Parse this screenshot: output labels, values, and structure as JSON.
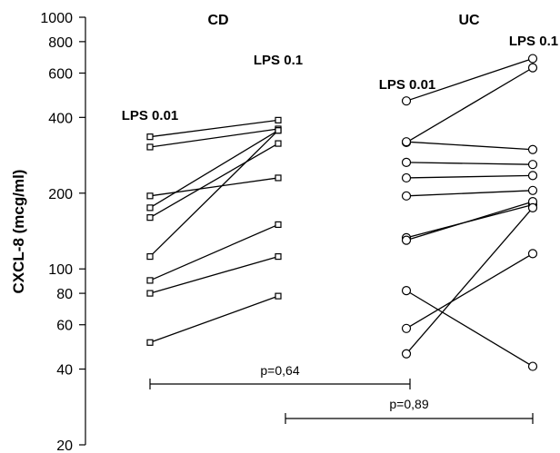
{
  "chart_data": {
    "type": "scatter",
    "yscale": "log",
    "ylabel": "CXCL-8 (mcg/ml)",
    "ylim": [
      20,
      1000
    ],
    "yticks": [
      1000,
      800,
      600,
      400,
      200,
      100,
      80,
      60,
      40,
      20
    ],
    "groups": [
      {
        "title": "CD",
        "marker": "square",
        "conditions": [
          "LPS 0.01",
          "LPS 0.1"
        ],
        "pairs": [
          [
            335,
            390
          ],
          [
            305,
            360
          ],
          [
            195,
            230
          ],
          [
            175,
            355
          ],
          [
            160,
            315
          ],
          [
            112,
            355
          ],
          [
            90,
            150
          ],
          [
            80,
            112
          ],
          [
            51,
            78
          ]
        ]
      },
      {
        "title": "UC",
        "marker": "circle",
        "conditions": [
          "LPS 0.01",
          "LPS 0.1"
        ],
        "pairs": [
          [
            465,
            685
          ],
          [
            318,
            630
          ],
          [
            320,
            298
          ],
          [
            265,
            260
          ],
          [
            230,
            235
          ],
          [
            195,
            205
          ],
          [
            133,
            180
          ],
          [
            130,
            185
          ],
          [
            82,
            41
          ],
          [
            58,
            115
          ],
          [
            46,
            175
          ]
        ]
      }
    ],
    "comparisons": [
      {
        "text": "p=0,64"
      },
      {
        "text": "p=0,89"
      }
    ]
  }
}
